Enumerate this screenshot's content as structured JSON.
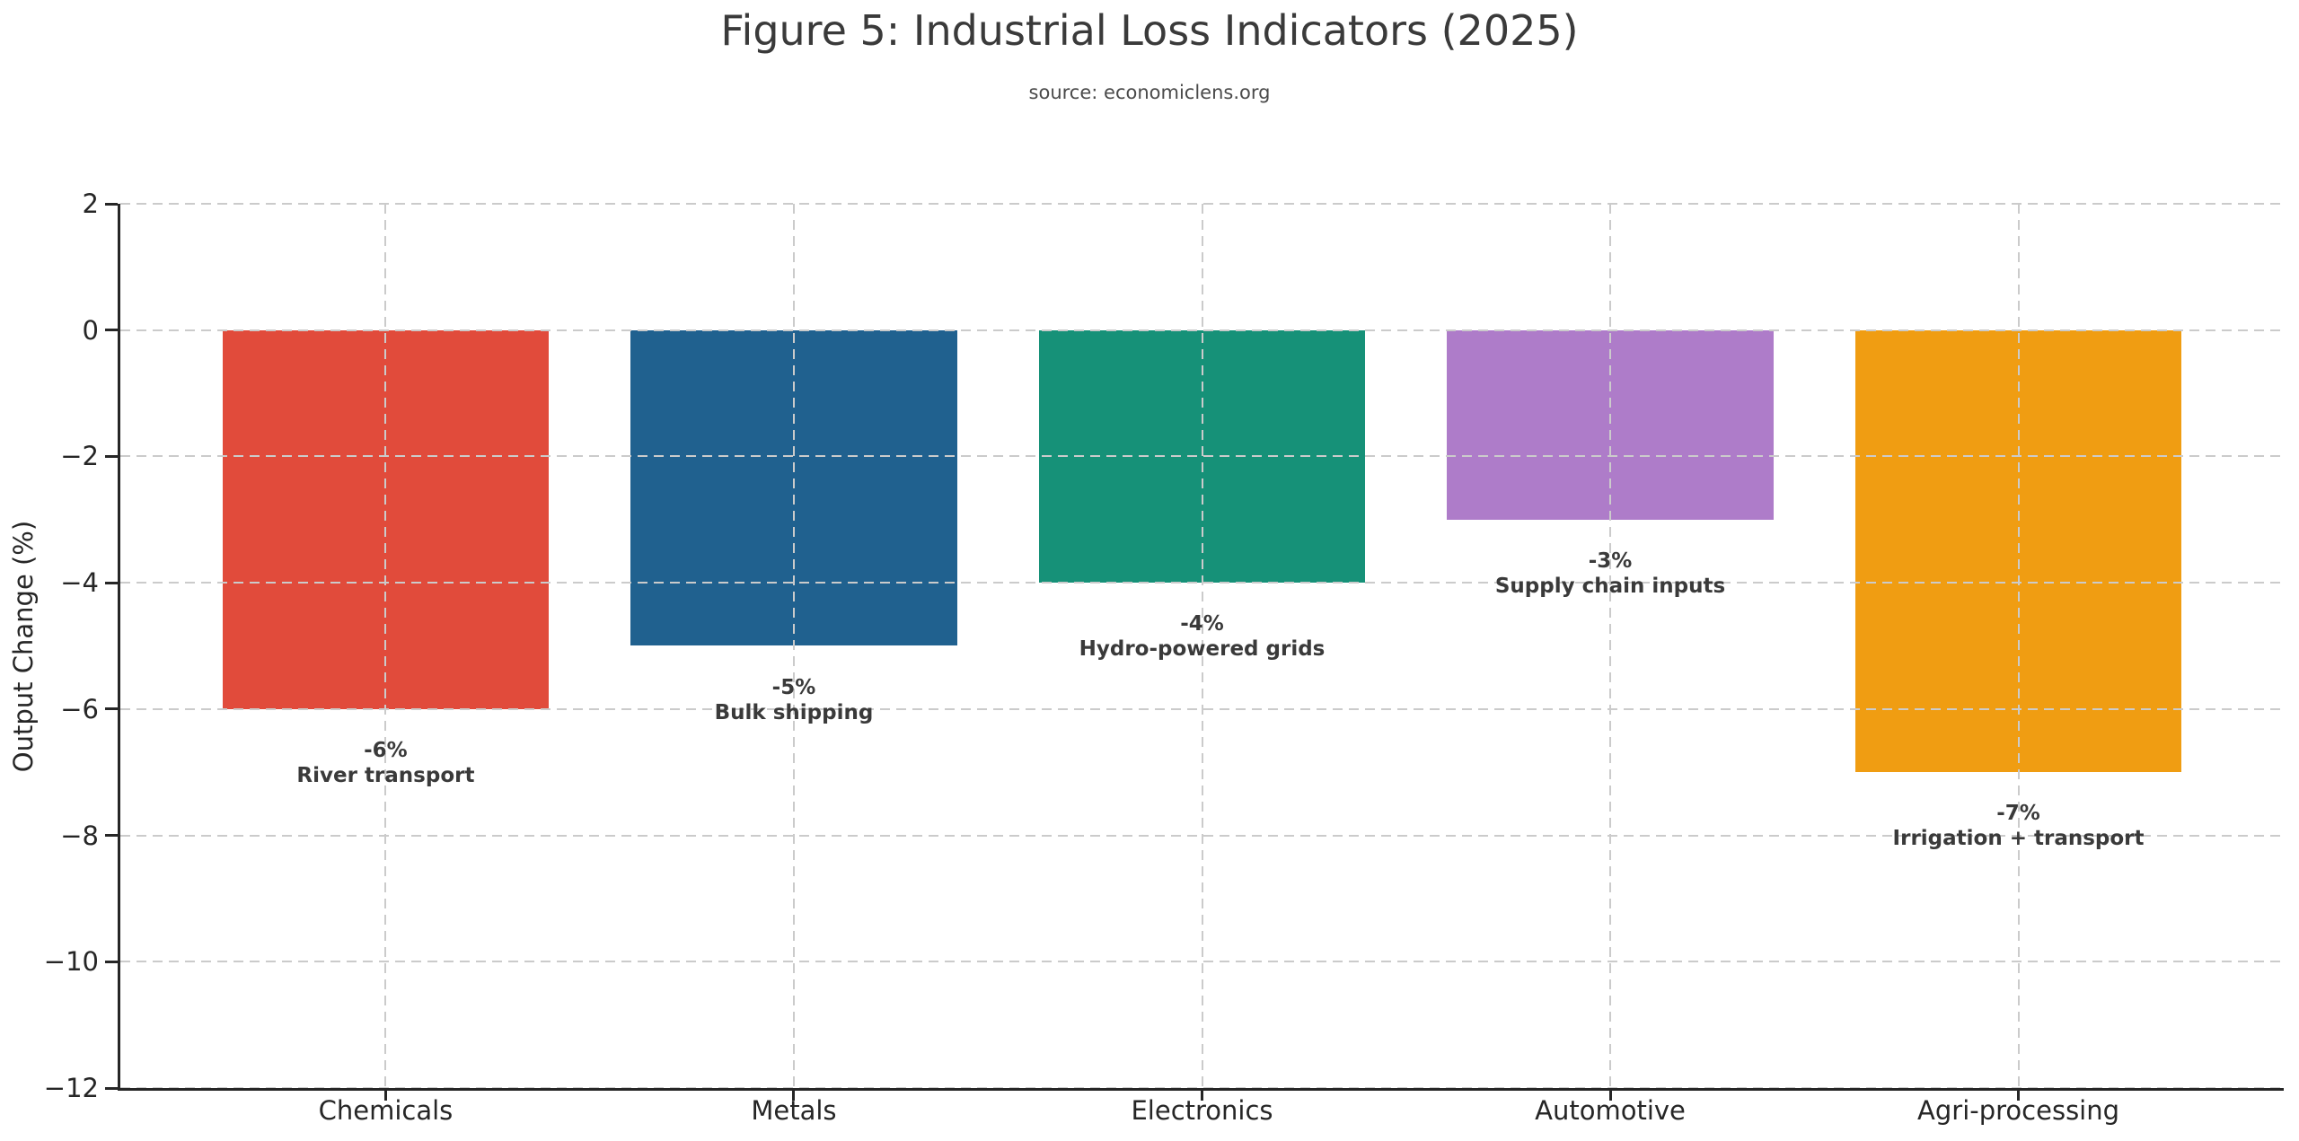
{
  "chart_data": {
    "type": "bar",
    "title": "Figure 5: Industrial Loss Indicators (2025)",
    "subtitle": "source: economiclens.org",
    "xlabel": "",
    "ylabel": "Output Change (%)",
    "categories": [
      "Chemicals",
      "Metals",
      "Electronics",
      "Automotive",
      "Agri-processing"
    ],
    "values": [
      -6,
      -5,
      -4,
      -3,
      -7
    ],
    "bar_colors": [
      "#e14b3b",
      "#20618f",
      "#169178",
      "#ae7cc9",
      "#f09d12"
    ],
    "annotations": [
      {
        "value_label": "-6%",
        "note": "River transport"
      },
      {
        "value_label": "-5%",
        "note": "Bulk shipping"
      },
      {
        "value_label": "-4%",
        "note": "Hydro-powered grids"
      },
      {
        "value_label": "-3%",
        "note": "Supply chain inputs"
      },
      {
        "value_label": "-7%",
        "note": "Irrigation + transport"
      }
    ],
    "ylim": [
      -12,
      2
    ],
    "yticks": [
      2,
      0,
      -2,
      -4,
      -6,
      -8,
      -10,
      -12
    ],
    "ytick_labels": [
      "2",
      "0",
      "−2",
      "−4",
      "−6",
      "−8",
      "−10",
      "−12"
    ],
    "grid": true,
    "grid_style": "dashed",
    "grid_color": "#cbcbcb",
    "legend": false,
    "spine_color": "#262626",
    "bar_width_fraction": 0.8
  }
}
